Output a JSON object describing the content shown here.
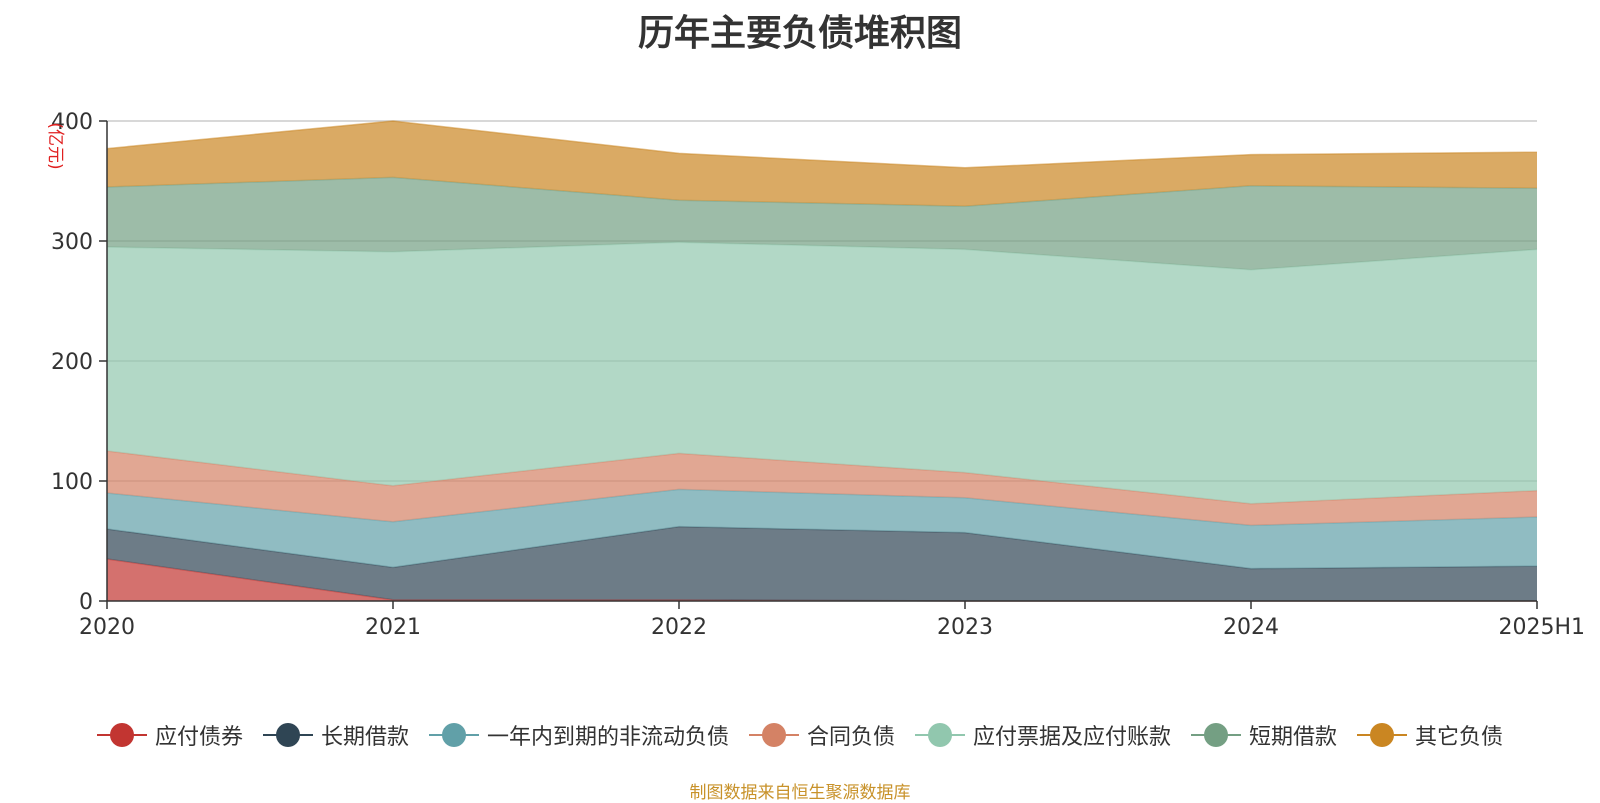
{
  "chart_data": {
    "type": "area",
    "stacked": true,
    "title": "历年主要负债堆积图",
    "unit_label": "(亿元)",
    "categories": [
      "2020",
      "2021",
      "2022",
      "2023",
      "2024",
      "2025H1"
    ],
    "ylim": [
      0,
      400
    ],
    "yticks": [
      0,
      100,
      200,
      300,
      400
    ],
    "grid": true,
    "legend_position": "bottom",
    "series": [
      {
        "name": "应付债券",
        "color": "#c23531",
        "values": [
          35,
          1,
          1,
          0,
          0,
          0
        ]
      },
      {
        "name": "长期借款",
        "color": "#2f4554",
        "values": [
          25,
          27,
          61,
          57,
          27,
          29
        ]
      },
      {
        "name": "一年内到期的非流动负债",
        "color": "#61a0a8",
        "values": [
          30,
          38,
          31,
          29,
          36,
          41
        ]
      },
      {
        "name": "合同负债",
        "color": "#d48265",
        "values": [
          35,
          30,
          30,
          21,
          18,
          22
        ]
      },
      {
        "name": "应付票据及应付账款",
        "color": "#91c7ae",
        "values": [
          170,
          195,
          176,
          186,
          195,
          201
        ]
      },
      {
        "name": "短期借款",
        "color": "#749f83",
        "values": [
          50,
          62,
          35,
          36,
          70,
          51
        ]
      },
      {
        "name": "其它负债",
        "color": "#ca8622",
        "values": [
          32,
          47,
          39,
          32,
          26,
          30
        ]
      }
    ]
  },
  "source_text": "制图数据来自恒生聚源数据库"
}
